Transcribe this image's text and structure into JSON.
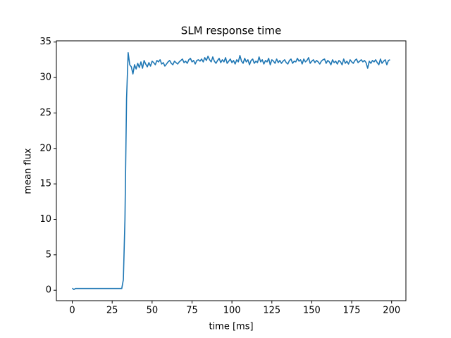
{
  "chart_data": {
    "type": "line",
    "title": "SLM response time",
    "x_label": "time [ms]",
    "y_label": "mean flux",
    "color": "#1f77b4",
    "x": [
      0,
      1,
      2,
      3,
      4,
      5,
      6,
      7,
      8,
      9,
      10,
      11,
      12,
      13,
      14,
      15,
      16,
      17,
      18,
      19,
      20,
      21,
      22,
      23,
      24,
      25,
      26,
      27,
      28,
      29,
      30,
      31,
      32,
      33,
      34,
      35,
      36,
      37,
      38,
      39,
      40,
      41,
      42,
      43,
      44,
      45,
      46,
      47,
      48,
      49,
      50,
      51,
      52,
      53,
      54,
      55,
      56,
      57,
      58,
      59,
      60,
      61,
      62,
      63,
      64,
      65,
      66,
      67,
      68,
      69,
      70,
      71,
      72,
      73,
      74,
      75,
      76,
      77,
      78,
      79,
      80,
      81,
      82,
      83,
      84,
      85,
      86,
      87,
      88,
      89,
      90,
      91,
      92,
      93,
      94,
      95,
      96,
      97,
      98,
      99,
      100,
      101,
      102,
      103,
      104,
      105,
      106,
      107,
      108,
      109,
      110,
      111,
      112,
      113,
      114,
      115,
      116,
      117,
      118,
      119,
      120,
      121,
      122,
      123,
      124,
      125,
      126,
      127,
      128,
      129,
      130,
      131,
      132,
      133,
      134,
      135,
      136,
      137,
      138,
      139,
      140,
      141,
      142,
      143,
      144,
      145,
      146,
      147,
      148,
      149,
      150,
      151,
      152,
      153,
      154,
      155,
      156,
      157,
      158,
      159,
      160,
      161,
      162,
      163,
      164,
      165,
      166,
      167,
      168,
      169,
      170,
      171,
      172,
      173,
      174,
      175,
      176,
      177,
      178,
      179,
      180,
      181,
      182,
      183,
      184,
      185,
      186,
      187,
      188,
      189,
      190,
      191,
      192,
      193,
      194,
      195,
      196,
      197,
      198,
      199
    ],
    "values": [
      0.3,
      0.1,
      0.25,
      0.25,
      0.25,
      0.25,
      0.25,
      0.25,
      0.25,
      0.25,
      0.25,
      0.25,
      0.25,
      0.25,
      0.25,
      0.25,
      0.25,
      0.25,
      0.25,
      0.25,
      0.25,
      0.25,
      0.25,
      0.25,
      0.25,
      0.25,
      0.25,
      0.25,
      0.25,
      0.25,
      0.25,
      0.25,
      1.5,
      10,
      27,
      33.5,
      31.8,
      31.5,
      30.5,
      31.8,
      31.2,
      32,
      31.4,
      32.2,
      31.3,
      32.4,
      31.9,
      31.5,
      32.1,
      31.6,
      32.3,
      32.1,
      31.8,
      32.4,
      32.2,
      32.5,
      31.9,
      32.1,
      31.6,
      31.9,
      32.2,
      32.4,
      32.0,
      31.8,
      32.3,
      32.1,
      31.9,
      32.2,
      32.4,
      32.6,
      32.1,
      32.3,
      32.0,
      32.5,
      32.7,
      32.2,
      32.4,
      31.9,
      32.4,
      32.5,
      32.3,
      32.6,
      32.2,
      32.8,
      32.4,
      33.0,
      32.5,
      32.2,
      32.9,
      32.3,
      32.0,
      32.4,
      32.7,
      32.1,
      32.5,
      32.2,
      32.8,
      32.0,
      32.3,
      32.6,
      32.1,
      32.4,
      31.9,
      32.5,
      32.2,
      33.1,
      32.3,
      32.0,
      32.7,
      32.2,
      32.5,
      31.8,
      32.4,
      32.6,
      32.0,
      32.3,
      32.1,
      32.9,
      32.2,
      32.5,
      31.9,
      32.4,
      32.2,
      32.7,
      31.8,
      32.5,
      32.3,
      32.0,
      32.6,
      32.1,
      32.4,
      32.0,
      32.3,
      32.5,
      32.1,
      31.9,
      32.4,
      32.6,
      32.0,
      32.3,
      32.2,
      32.7,
      32.3,
      32.5,
      31.9,
      32.6,
      32.2,
      32.4,
      32.8,
      32.0,
      32.3,
      32.5,
      32.1,
      32.4,
      32.2,
      31.9,
      32.3,
      32.5,
      32.6,
      32.0,
      32.4,
      32.2,
      31.8,
      32.5,
      32.1,
      32.3,
      31.9,
      32.4,
      32.2,
      31.8,
      32.6,
      32.0,
      32.3,
      31.9,
      32.5,
      32.2,
      32.0,
      32.4,
      32.6,
      32.1,
      32.3,
      32.5,
      32.2,
      32.4,
      32.1,
      31.3,
      32.3,
      32.0,
      32.4,
      32.2,
      32.5,
      32.1,
      31.8,
      32.6,
      32.0,
      32.3,
      32.5,
      31.8,
      32.4,
      32.5
    ],
    "xlim": [
      -9.95,
      208.95
    ],
    "xticks": [
      0,
      25,
      50,
      75,
      100,
      125,
      150,
      175,
      200
    ],
    "ylim": [
      -1.47,
      35.17
    ],
    "yticks": [
      0,
      5,
      10,
      15,
      20,
      25,
      30,
      35
    ]
  }
}
